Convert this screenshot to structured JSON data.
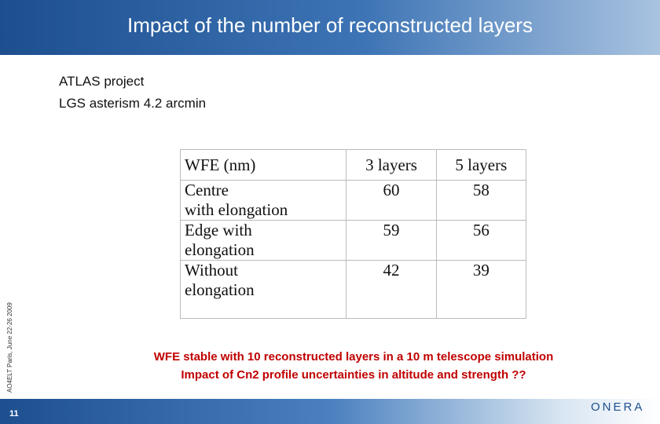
{
  "header": {
    "title": "Impact of the number of reconstructed layers"
  },
  "bullets": [
    "ATLAS project",
    "LGS asterism 4.2 arcmin"
  ],
  "table": {
    "header": [
      "WFE (nm)",
      "3 layers",
      "5 layers"
    ],
    "rows": [
      [
        "Centre\nwith elongation",
        "60",
        "58"
      ],
      [
        "Edge with\nelongation",
        "59",
        "56"
      ],
      [
        "Without\nelongation",
        "42",
        "39"
      ]
    ]
  },
  "notes": [
    "WFE stable with 10 reconstructed layers in a 10 m telescope simulation",
    "Impact of Cn2 profile uncertainties in altitude and strength ??"
  ],
  "side_text": "AO4ELT Paris, June 22-26 2009",
  "footer": {
    "page_number": "11",
    "logo": "ONERA"
  }
}
